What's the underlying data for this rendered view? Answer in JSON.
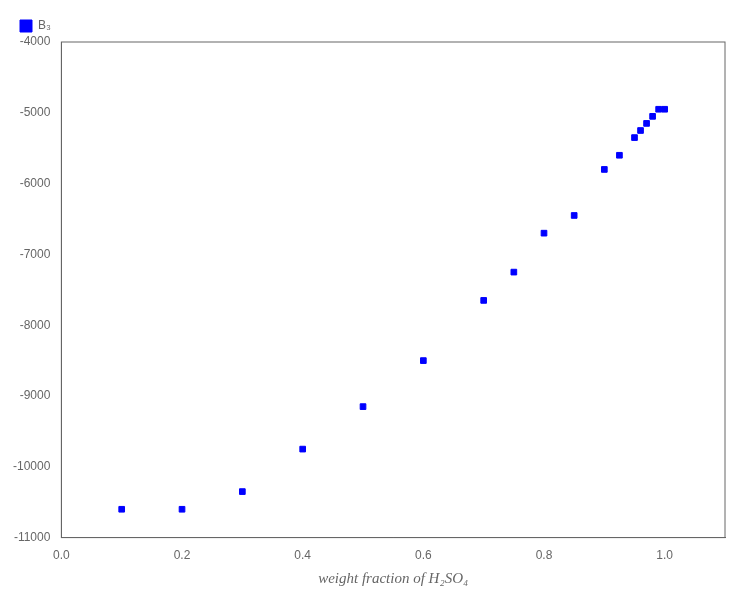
{
  "chart_data": {
    "type": "scatter",
    "x": [
      0.1,
      0.2,
      0.3,
      0.4,
      0.5,
      0.6,
      0.7,
      0.75,
      0.8,
      0.85,
      0.9,
      0.925,
      0.95,
      0.96,
      0.97,
      0.98,
      0.99,
      1.0
    ],
    "series": [
      {
        "name": "B₃",
        "color": "#0000FF",
        "marker": "square",
        "values": [
          -10600,
          -10600,
          -10350,
          -9750,
          -9150,
          -8500,
          -7650,
          -7250,
          -6700,
          -6450,
          -5800,
          -5600,
          -5350,
          -5250,
          -5150,
          -5050,
          -4950,
          -4950
        ]
      }
    ],
    "xlabel": "weight fraction of H₂SO₄",
    "xlim": [
      0.0,
      1.1
    ],
    "ylim": [
      -11000,
      -4000
    ],
    "xticks": [
      {
        "value": 0.0,
        "label": "0.0"
      },
      0.2,
      0.4,
      0.6,
      0.8,
      {
        "value": 1.0,
        "label": "1.0"
      }
    ],
    "yticks": [
      -11000,
      -10000,
      -9000,
      -8000,
      -7000,
      -6000,
      -5000,
      -4000
    ],
    "grid": false,
    "legend": "upper left"
  }
}
